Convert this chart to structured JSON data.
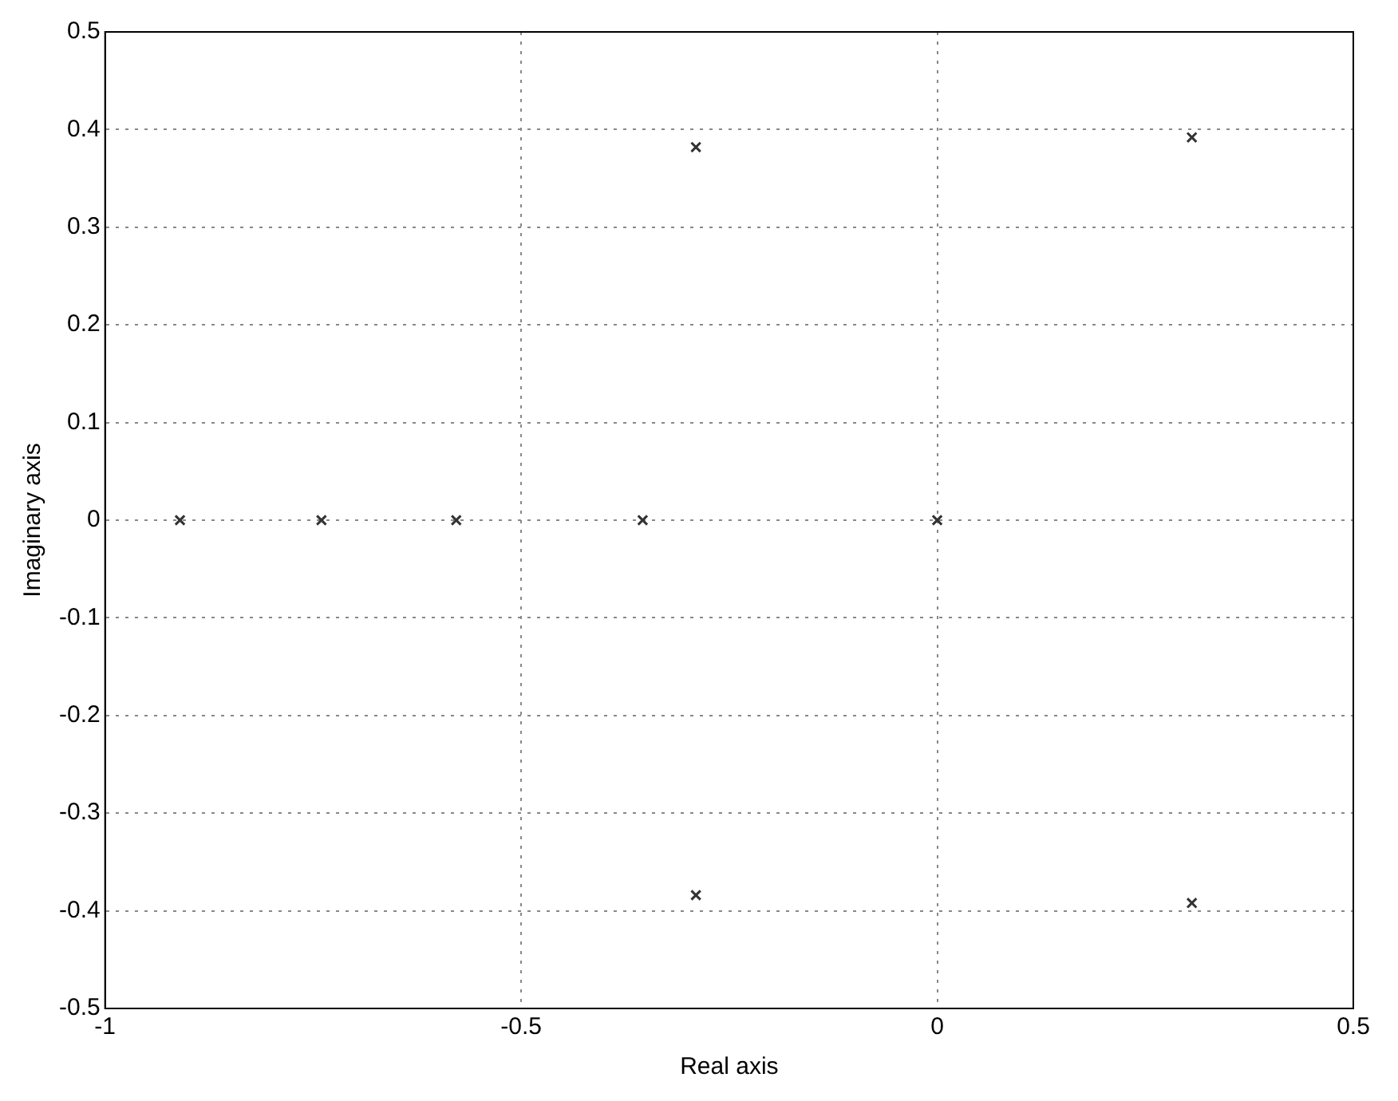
{
  "chart_data": {
    "type": "scatter",
    "xlabel": "Real axis",
    "ylabel": "Imaginary axis",
    "x": [
      -0.91,
      -0.74,
      -0.578,
      -0.354,
      0,
      -0.29,
      0.306,
      -0.29,
      0.306
    ],
    "values": [
      0,
      0,
      0,
      0,
      0,
      0.382,
      0.392,
      -0.384,
      -0.392
    ],
    "color": "#333333",
    "marker": "cross",
    "xlim": [
      -1,
      0.5
    ],
    "xticks": [
      -1,
      {
        "value": -0.5,
        "label": "-0.5"
      },
      0,
      {
        "value": 0.5,
        "label": "0.5"
      }
    ],
    "ylim": [
      -0.5,
      0.5
    ],
    "yticks": [
      {
        "value": -0.5,
        "label": "-0.5"
      },
      {
        "value": -0.4,
        "label": "-0.4"
      },
      {
        "value": -0.3,
        "label": "-0.3"
      },
      {
        "value": -0.2,
        "label": "-0.2"
      },
      {
        "value": -0.1,
        "label": "-0.1"
      },
      0,
      {
        "value": 0.1,
        "label": "0.1"
      },
      {
        "value": 0.2,
        "label": "0.2"
      },
      {
        "value": 0.3,
        "label": "0.3"
      },
      {
        "value": 0.4,
        "label": "0.4"
      },
      {
        "value": 0.5,
        "label": "0.5"
      }
    ],
    "grid": true,
    "legend": false
  }
}
